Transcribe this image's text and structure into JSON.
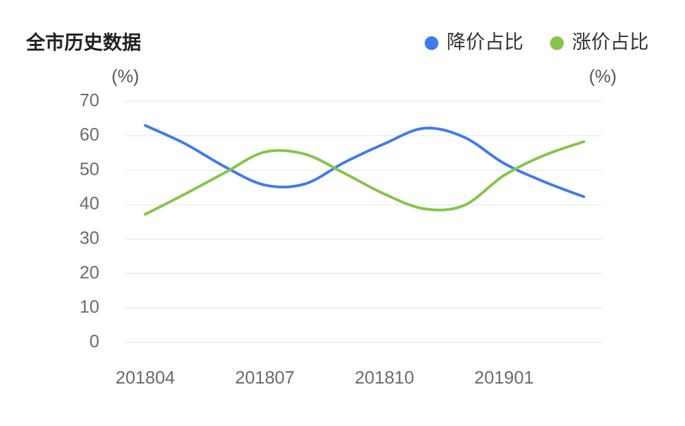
{
  "chart_data": {
    "type": "line",
    "title": "全市历史数据",
    "y_label": "(%)",
    "y2_label": "(%)",
    "categories": [
      "201804",
      null,
      null,
      "201807",
      null,
      null,
      "201810",
      null,
      null,
      "201901",
      null,
      null
    ],
    "series": [
      {
        "name": "降价占比",
        "color": "#3f7bec",
        "values": [
          63,
          57.7,
          51,
          45.7,
          46,
          52.3,
          57.7,
          62.2,
          59.6,
          52,
          46.7,
          42.3
        ]
      },
      {
        "name": "涨价占比",
        "color": "#86c44a",
        "values": [
          37.2,
          43.1,
          49.3,
          55.3,
          54.7,
          49.1,
          43.1,
          38.8,
          39.8,
          48.5,
          54.3,
          58.3
        ]
      }
    ],
    "ylim": [
      0,
      70
    ],
    "yticks": [
      0,
      10,
      20,
      30,
      40,
      50,
      60,
      70
    ],
    "grid": true
  }
}
